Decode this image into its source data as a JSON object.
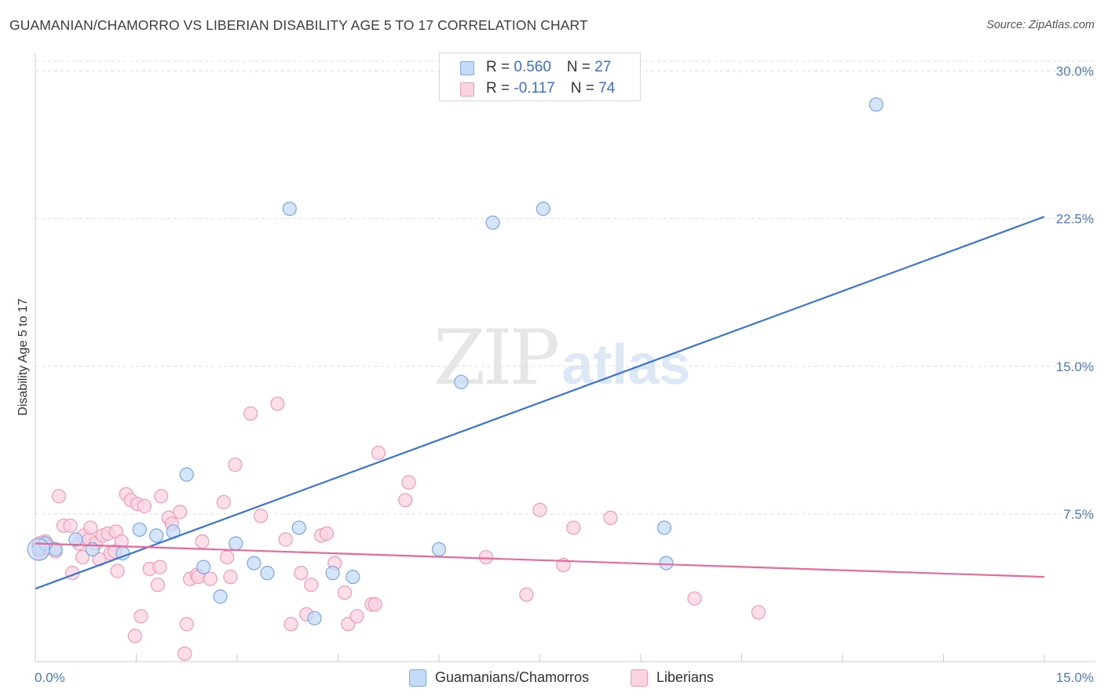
{
  "header": {
    "title": "GUAMANIAN/CHAMORRO VS LIBERIAN DISABILITY AGE 5 TO 17 CORRELATION CHART",
    "source": "Source: ZipAtlas.com"
  },
  "watermark": {
    "zip": "ZIP",
    "atlas": "atlas"
  },
  "legend": {
    "rows": [
      {
        "r_label": "R = ",
        "r_value": "0.560",
        "n_label": "N = ",
        "n_value": "27",
        "color": "#7aa8e8",
        "fill": "#c6dbf7"
      },
      {
        "r_label": "R = ",
        "r_value": "-0.117",
        "n_label": "N = ",
        "n_value": "74",
        "color": "#f29ab8",
        "fill": "#fbd3e0"
      }
    ]
  },
  "bottom_legend": {
    "items": [
      {
        "label": "Guamanians/Chamorros",
        "color": "#7aa8e8",
        "fill": "#c6dbf7"
      },
      {
        "label": "Liberians",
        "color": "#f29ab8",
        "fill": "#fbd3e0"
      }
    ]
  },
  "chart_data": {
    "type": "scatter",
    "title": "GUAMANIAN/CHAMORRO VS LIBERIAN DISABILITY AGE 5 TO 17 CORRELATION CHART",
    "xlabel": "",
    "ylabel": "Disability Age 5 to 17",
    "xlim": [
      0,
      15
    ],
    "ylim": [
      0,
      30.5
    ],
    "x_tick_labels": [
      "0.0%",
      "15.0%"
    ],
    "y_ticks": [
      7.5,
      15.0,
      22.5,
      30.0
    ],
    "y_tick_labels": [
      "7.5%",
      "15.0%",
      "22.5%",
      "30.0%"
    ],
    "grid": true,
    "series": [
      {
        "name": "Guamanians/Chamorros",
        "color": "#3a74d4",
        "point_fill": "#c6dbf7",
        "point_stroke": "#7aa8e8",
        "trend": {
          "x": [
            0,
            15
          ],
          "y": [
            3.7,
            22.6
          ]
        },
        "points": [
          [
            0.05,
            5.7
          ],
          [
            0.3,
            5.7
          ],
          [
            0.6,
            6.2
          ],
          [
            0.85,
            5.7
          ],
          [
            1.3,
            5.5
          ],
          [
            1.55,
            6.7
          ],
          [
            1.8,
            6.4
          ],
          [
            2.05,
            6.6
          ],
          [
            2.25,
            9.5
          ],
          [
            2.5,
            4.8
          ],
          [
            2.75,
            3.3
          ],
          [
            2.98,
            6.0
          ],
          [
            3.25,
            5.0
          ],
          [
            3.45,
            4.5
          ],
          [
            3.78,
            23.0
          ],
          [
            3.92,
            6.8
          ],
          [
            4.15,
            2.2
          ],
          [
            4.42,
            4.5
          ],
          [
            4.72,
            4.3
          ],
          [
            6.0,
            5.7
          ],
          [
            6.33,
            14.2
          ],
          [
            6.8,
            22.3
          ],
          [
            7.55,
            23.0
          ],
          [
            9.35,
            6.8
          ],
          [
            9.38,
            5.0
          ],
          [
            12.5,
            28.3
          ],
          [
            0.15,
            6.0
          ]
        ]
      },
      {
        "name": "Liberians",
        "color": "#e8699a",
        "point_fill": "#fbd3e0",
        "point_stroke": "#f29ab8",
        "trend": {
          "x": [
            0,
            15
          ],
          "y": [
            6.0,
            4.3
          ]
        },
        "points": [
          [
            0.05,
            5.9
          ],
          [
            0.15,
            6.1
          ],
          [
            0.22,
            5.8
          ],
          [
            0.3,
            5.6
          ],
          [
            0.35,
            8.4
          ],
          [
            0.42,
            6.9
          ],
          [
            0.52,
            6.9
          ],
          [
            0.55,
            4.5
          ],
          [
            0.65,
            6.0
          ],
          [
            0.7,
            5.3
          ],
          [
            0.72,
            6.4
          ],
          [
            0.8,
            6.2
          ],
          [
            0.82,
            6.8
          ],
          [
            0.9,
            6.0
          ],
          [
            0.95,
            5.2
          ],
          [
            1.0,
            6.4
          ],
          [
            1.08,
            6.5
          ],
          [
            1.12,
            5.5
          ],
          [
            1.18,
            5.6
          ],
          [
            1.2,
            6.6
          ],
          [
            1.22,
            4.6
          ],
          [
            1.28,
            6.1
          ],
          [
            1.35,
            8.5
          ],
          [
            1.42,
            8.2
          ],
          [
            1.48,
            1.3
          ],
          [
            1.52,
            8.0
          ],
          [
            1.57,
            2.3
          ],
          [
            1.62,
            7.9
          ],
          [
            1.7,
            4.7
          ],
          [
            1.82,
            3.9
          ],
          [
            1.85,
            4.8
          ],
          [
            1.87,
            8.4
          ],
          [
            1.98,
            7.3
          ],
          [
            2.03,
            7.0
          ],
          [
            2.15,
            7.6
          ],
          [
            2.22,
            0.4
          ],
          [
            2.25,
            1.9
          ],
          [
            2.3,
            4.2
          ],
          [
            2.4,
            4.4
          ],
          [
            2.42,
            4.3
          ],
          [
            2.48,
            6.1
          ],
          [
            2.6,
            4.2
          ],
          [
            2.8,
            8.1
          ],
          [
            2.85,
            5.3
          ],
          [
            2.9,
            4.3
          ],
          [
            2.97,
            10.0
          ],
          [
            3.2,
            12.6
          ],
          [
            3.35,
            7.4
          ],
          [
            3.6,
            13.1
          ],
          [
            3.72,
            6.2
          ],
          [
            3.8,
            1.9
          ],
          [
            3.95,
            4.5
          ],
          [
            4.03,
            2.4
          ],
          [
            4.1,
            3.9
          ],
          [
            4.25,
            6.4
          ],
          [
            4.33,
            6.5
          ],
          [
            4.45,
            5.0
          ],
          [
            4.6,
            3.5
          ],
          [
            4.65,
            1.9
          ],
          [
            4.78,
            2.3
          ],
          [
            5.0,
            2.9
          ],
          [
            5.05,
            2.9
          ],
          [
            5.1,
            10.6
          ],
          [
            5.5,
            8.2
          ],
          [
            5.55,
            9.1
          ],
          [
            6.7,
            5.3
          ],
          [
            7.3,
            3.4
          ],
          [
            7.5,
            7.7
          ],
          [
            7.85,
            4.9
          ],
          [
            8.0,
            6.8
          ],
          [
            8.55,
            7.3
          ],
          [
            9.8,
            3.2
          ],
          [
            10.75,
            2.5
          ],
          [
            0.08,
            5.5
          ]
        ]
      }
    ]
  }
}
